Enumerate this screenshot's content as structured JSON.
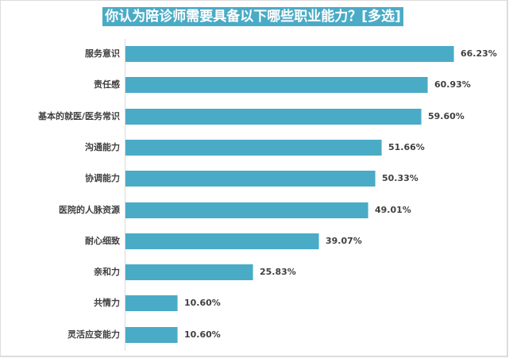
{
  "chart_data": {
    "type": "bar",
    "orientation": "horizontal",
    "title": "你认为陪诊师需要具备以下哪些职业能力？[多选]",
    "xlabel": "",
    "ylabel": "",
    "categories": [
      "服务意识",
      "责任感",
      "基本的就医/医务常识",
      "沟通能力",
      "协调能力",
      "医院的人脉资源",
      "耐心细致",
      "亲和力",
      "共情力",
      "灵活应变能力"
    ],
    "values": [
      66.23,
      60.93,
      59.6,
      51.66,
      50.33,
      49.01,
      39.07,
      25.83,
      10.6,
      10.6
    ],
    "value_labels": [
      "66.23%",
      "60.93%",
      "59.60%",
      "51.66%",
      "50.33%",
      "49.01%",
      "39.07%",
      "25.83%",
      "10.60%",
      "10.60%"
    ],
    "unit": "%",
    "grid": false,
    "legend": null,
    "bar_color": "#4aabc6",
    "title_bg_color": "#4aabc6"
  },
  "title": "你认为陪诊师需要具备以下哪些职业能力？[多选]",
  "rows": [
    {
      "label": "服务意识",
      "value": "66.23%"
    },
    {
      "label": "责任感",
      "value": "60.93%"
    },
    {
      "label": "基本的就医/医务常识",
      "value": "59.60%"
    },
    {
      "label": "沟通能力",
      "value": "51.66%"
    },
    {
      "label": "协调能力",
      "value": "50.33%"
    },
    {
      "label": "医院的人脉资源",
      "value": "49.01%"
    },
    {
      "label": "耐心细致",
      "value": "39.07%"
    },
    {
      "label": "亲和力",
      "value": "25.83%"
    },
    {
      "label": "共情力",
      "value": "10.60%"
    },
    {
      "label": "灵活应变能力",
      "value": "10.60%"
    }
  ]
}
